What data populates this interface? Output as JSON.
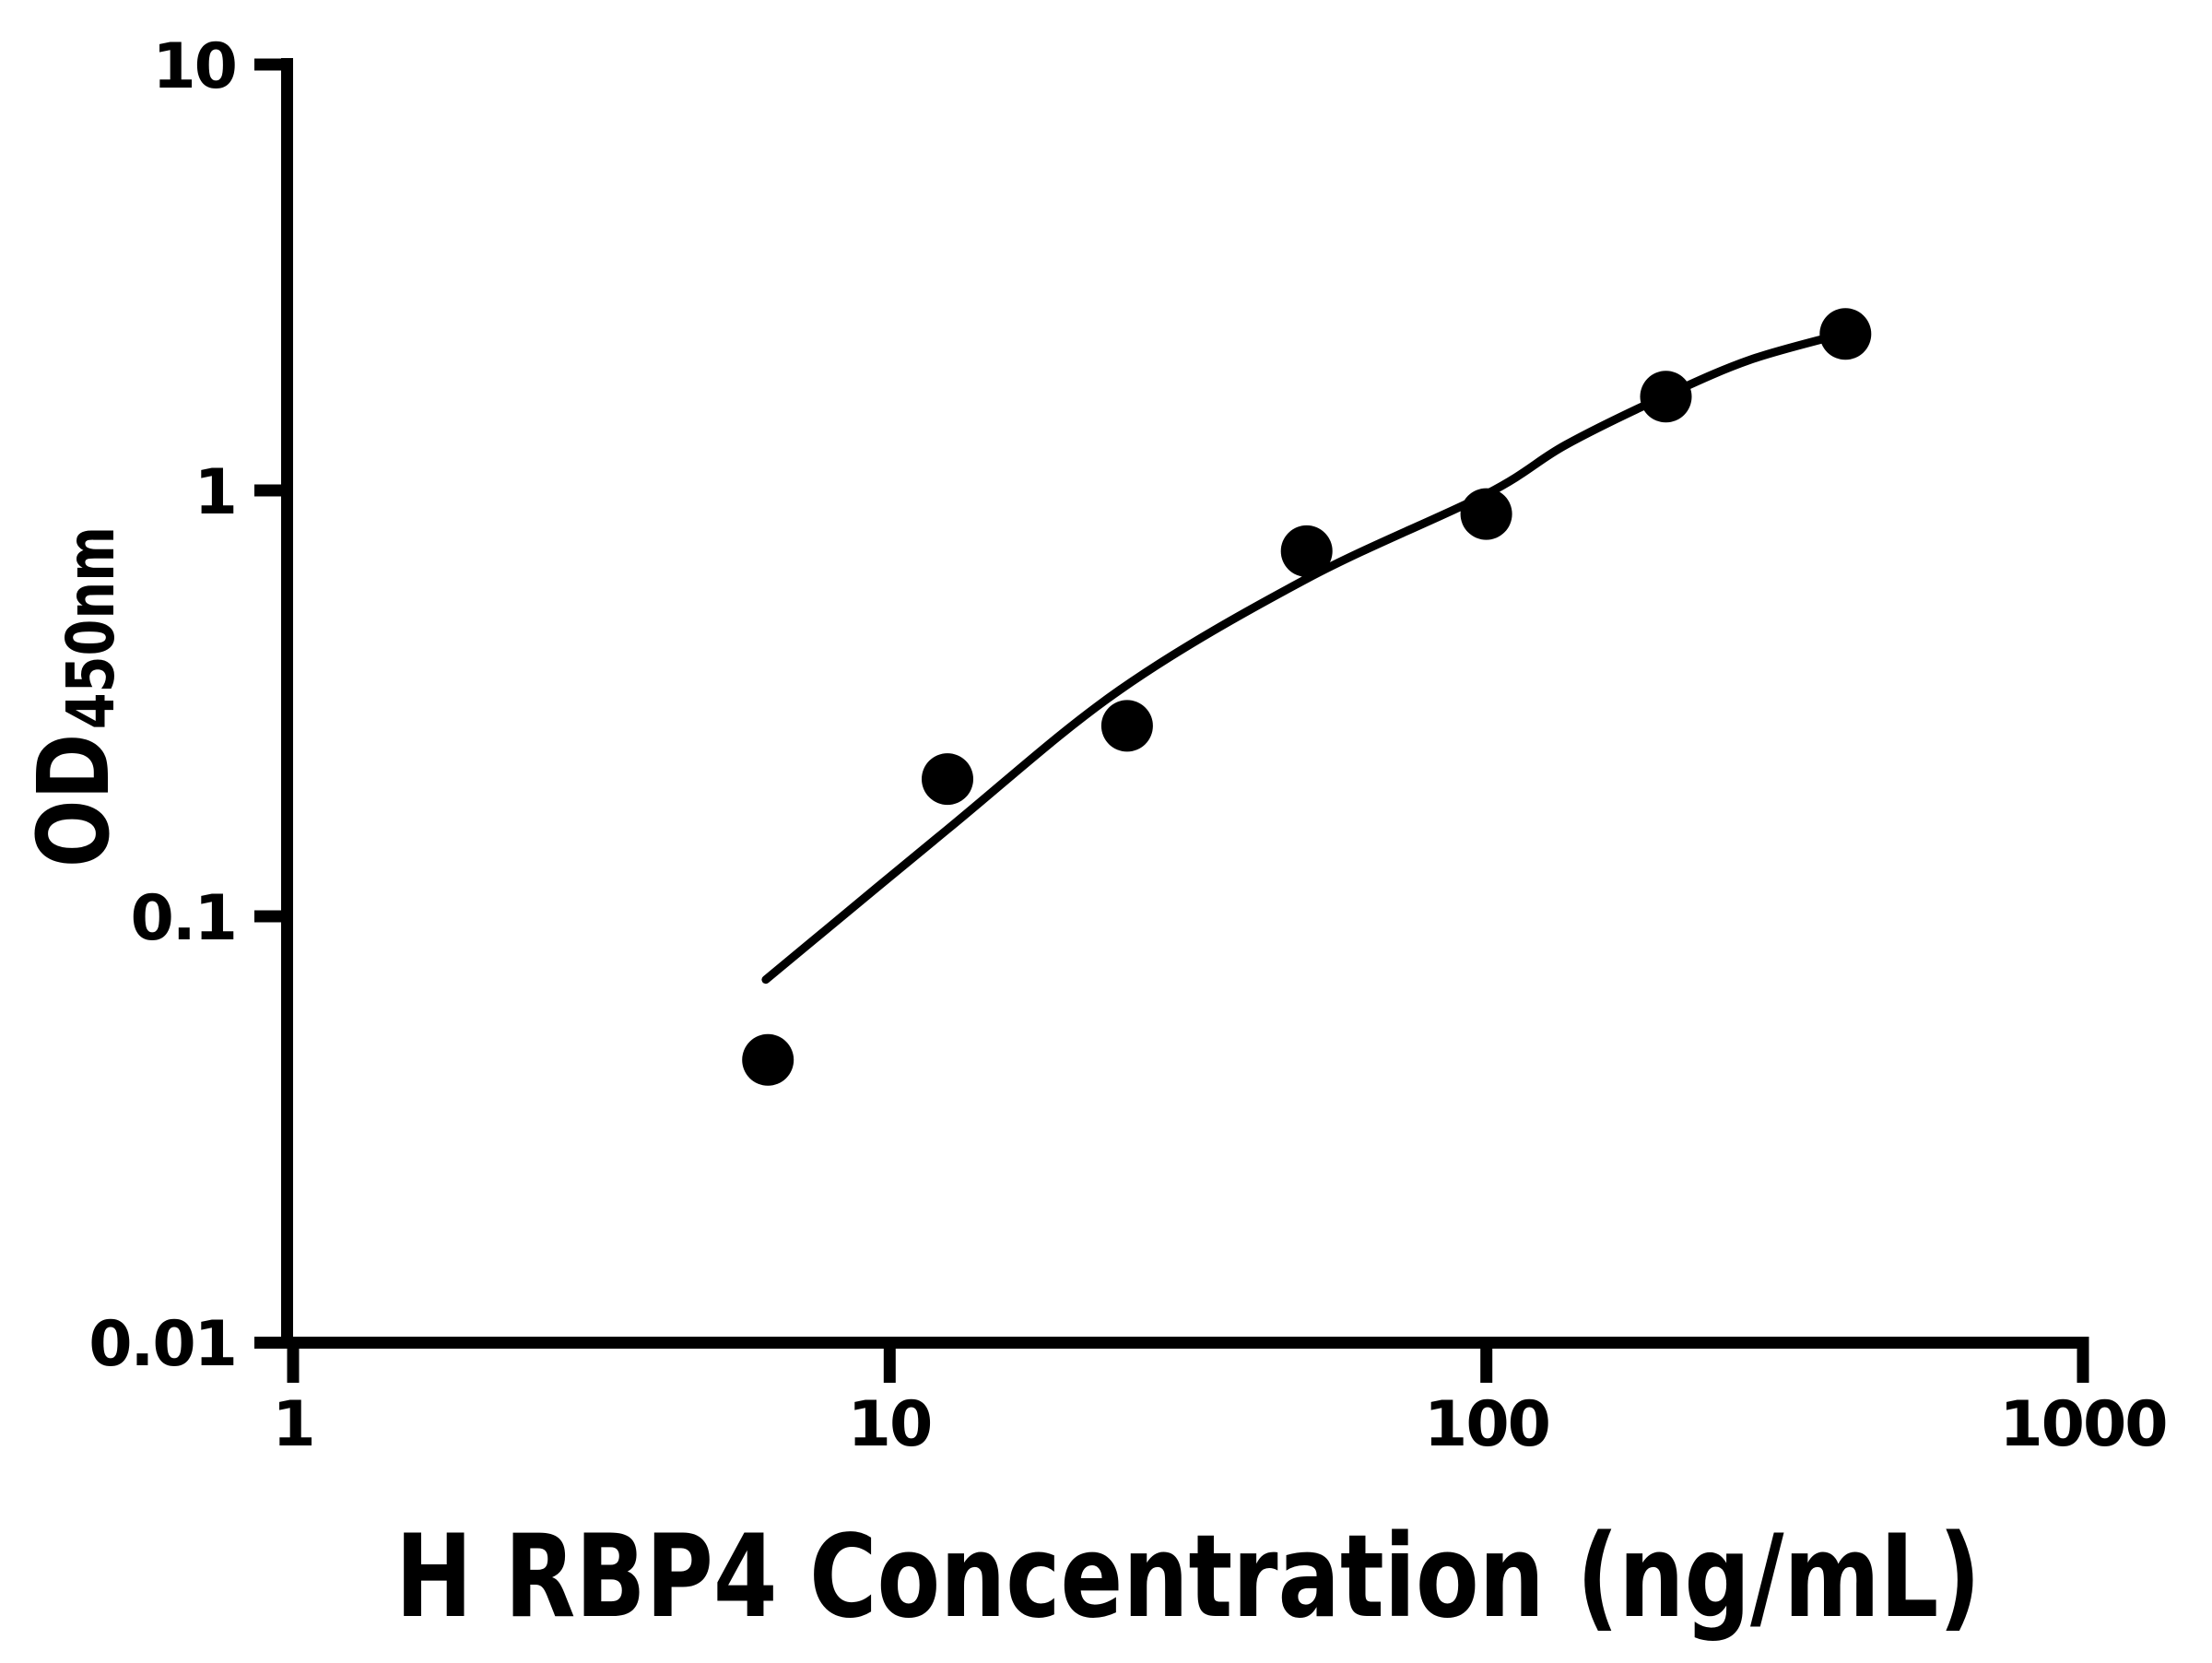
{
  "figure": {
    "background": "#ffffff",
    "foreground": "#000000"
  },
  "axes": {
    "x": {
      "label": "H RBP4 Concentration (ng/mL)",
      "scale": "log",
      "ticks": [
        "1",
        "10",
        "100",
        "1000"
      ]
    },
    "y": {
      "label_main": "OD",
      "label_sub": "450nm",
      "scale": "log",
      "ticks": [
        "10",
        "1",
        "0.1",
        "0.01"
      ]
    }
  },
  "chart_data": {
    "type": "scatter",
    "title": "",
    "xlabel": "H RBP4 Concentration (ng/mL)",
    "ylabel": "OD450nm",
    "xscale": "log",
    "yscale": "log",
    "xlim": [
      1,
      1000
    ],
    "ylim": [
      0.01,
      10
    ],
    "x_ticks": [
      1,
      10,
      100,
      1000
    ],
    "y_ticks": [
      10,
      1,
      0.1,
      0.01
    ],
    "grid": false,
    "legend": false,
    "marker_color": "#000000",
    "line_color": "#000000",
    "x": [
      6.25,
      12.5,
      25,
      50,
      100,
      200,
      400
    ],
    "y": [
      0.046,
      0.21,
      0.28,
      0.72,
      0.88,
      1.66,
      2.33
    ],
    "fit_curve_points": [
      [
        6.2,
        0.071
      ],
      [
        12.5,
        0.16
      ],
      [
        24.3,
        0.34
      ],
      [
        50,
        0.62
      ],
      [
        100,
        0.98
      ],
      [
        136,
        1.28
      ],
      [
        200,
        1.67
      ],
      [
        278,
        2.03
      ],
      [
        400,
        2.34
      ]
    ]
  }
}
